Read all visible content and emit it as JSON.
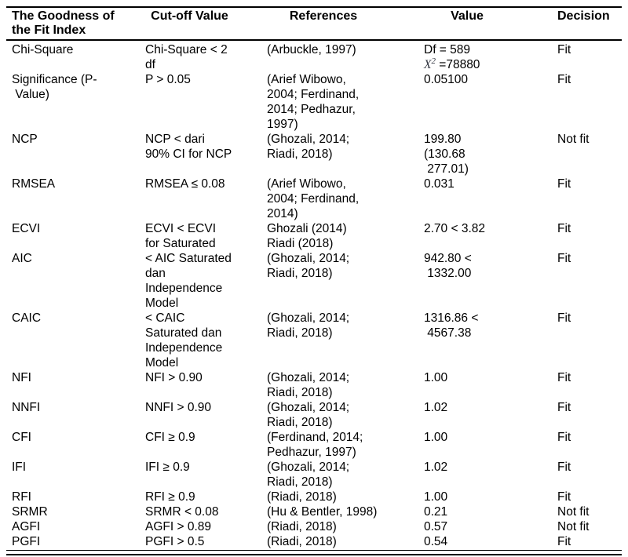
{
  "table": {
    "headers": {
      "index": "The Goodness of\nthe Fit Index",
      "cutoff": "Cut-off Value",
      "references": "References",
      "value": "Value",
      "decision": "Decision"
    },
    "rows": [
      {
        "index": [
          "Chi-Square"
        ],
        "cutoff": [
          "Chi-Square < 2",
          "df"
        ],
        "references": [
          "(Arbuckle, 1997)"
        ],
        "value": [
          "Df = 589",
          {
            "math_base": "X",
            "math_sup": "2",
            "rest": " =78880"
          }
        ],
        "decision": "Fit"
      },
      {
        "index": [
          "Significance (P-",
          " Value)"
        ],
        "cutoff": [
          "P > 0.05"
        ],
        "references": [
          "(Arief Wibowo,",
          "2004; Ferdinand,",
          "2014; Pedhazur,",
          "1997)"
        ],
        "value": [
          "0.05100"
        ],
        "decision": "Fit"
      },
      {
        "index": [
          "NCP"
        ],
        "cutoff": [
          "NCP < dari",
          "90% CI for NCP"
        ],
        "references": [
          "(Ghozali, 2014;",
          "Riadi, 2018)"
        ],
        "value": [
          "199.80",
          "(130.68",
          " 277.01)"
        ],
        "decision": "Not fit"
      },
      {
        "index": [
          "RMSEA"
        ],
        "cutoff": [
          "RMSEA ≤ 0.08"
        ],
        "references": [
          "(Arief Wibowo,",
          "2004; Ferdinand,",
          "2014)"
        ],
        "value": [
          "0.031"
        ],
        "decision": "Fit"
      },
      {
        "index": [
          "ECVI"
        ],
        "cutoff": [
          "ECVI < ECVI",
          "for Saturated"
        ],
        "references": [
          "Ghozali (2014)",
          "Riadi (2018)"
        ],
        "value": [
          "2.70 < 3.82"
        ],
        "decision": "Fit"
      },
      {
        "index": [
          "AIC"
        ],
        "cutoff": [
          "< AIC Saturated",
          "dan",
          "Independence",
          "Model"
        ],
        "references": [
          "(Ghozali, 2014;",
          "Riadi, 2018)"
        ],
        "value": [
          "942.80 <",
          " 1332.00"
        ],
        "decision": "Fit"
      },
      {
        "index": [
          "CAIC"
        ],
        "cutoff": [
          "< CAIC",
          "Saturated dan",
          "Independence",
          "Model"
        ],
        "references": [
          "(Ghozali, 2014;",
          "Riadi, 2018)"
        ],
        "value": [
          "1316.86 <",
          " 4567.38"
        ],
        "decision": "Fit"
      },
      {
        "index": [
          "NFI"
        ],
        "cutoff": [
          "NFI > 0.90"
        ],
        "references": [
          "(Ghozali, 2014;",
          "Riadi, 2018)"
        ],
        "value": [
          "1.00"
        ],
        "decision": "Fit"
      },
      {
        "index": [
          "NNFI"
        ],
        "cutoff": [
          "NNFI > 0.90"
        ],
        "references": [
          "(Ghozali, 2014;",
          "Riadi, 2018)"
        ],
        "value": [
          "1.02"
        ],
        "decision": "Fit"
      },
      {
        "index": [
          "CFI"
        ],
        "cutoff": [
          "CFI ≥ 0.9"
        ],
        "references": [
          "(Ferdinand, 2014;",
          "Pedhazur, 1997)"
        ],
        "value": [
          "1.00"
        ],
        "decision": "Fit"
      },
      {
        "index": [
          "IFI"
        ],
        "cutoff": [
          "IFI ≥ 0.9"
        ],
        "references": [
          "(Ghozali, 2014;",
          "Riadi, 2018)"
        ],
        "value": [
          "1.02"
        ],
        "decision": "Fit"
      },
      {
        "index": [
          "RFI"
        ],
        "cutoff": [
          "RFI ≥ 0.9"
        ],
        "references": [
          "(Riadi, 2018)"
        ],
        "value": [
          "1.00"
        ],
        "decision": "Fit"
      },
      {
        "index": [
          "SRMR"
        ],
        "cutoff": [
          "SRMR < 0.08"
        ],
        "references": [
          "(Hu & Bentler, 1998)"
        ],
        "value": [
          "0.21"
        ],
        "decision": "Not fit"
      },
      {
        "index": [
          "AGFI"
        ],
        "cutoff": [
          "AGFI > 0.89"
        ],
        "references": [
          "(Riadi, 2018)"
        ],
        "value": [
          "0.57"
        ],
        "decision": "Not fit"
      },
      {
        "index": [
          "PGFI"
        ],
        "cutoff": [
          "PGFI > 0.5"
        ],
        "references": [
          "(Riadi, 2018)"
        ],
        "value": [
          "0.54"
        ],
        "decision": "Fit"
      }
    ]
  }
}
